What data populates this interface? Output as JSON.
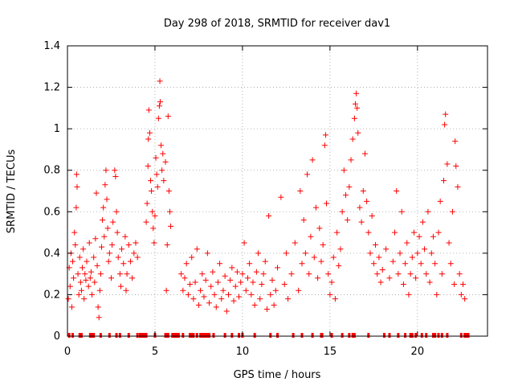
{
  "chart_data": {
    "type": "scatter",
    "title": "Day 298 of 2018, SRMTID for receiver dav1",
    "xlabel": "GPS time / hours",
    "ylabel": "SRMTID / TECUs",
    "xlim": [
      0,
      24
    ],
    "ylim": [
      0,
      1.4
    ],
    "x_ticks": [
      0,
      5,
      10,
      15,
      20
    ],
    "x_tick_labels": [
      "0",
      "5",
      "10",
      "15",
      "20"
    ],
    "y_ticks": [
      0,
      0.2,
      0.4,
      0.6,
      0.8,
      1.0,
      1.2,
      1.4
    ],
    "y_tick_labels": [
      "0",
      "0.2",
      "0.4",
      "0.6",
      "0.8",
      "1",
      "1.2",
      "1.4"
    ],
    "grid": true,
    "marker": "+",
    "series_color": "#ff0000",
    "series": [
      {
        "name": "SRMTID",
        "points": [
          [
            0.05,
            0.18
          ],
          [
            0.1,
            0.33
          ],
          [
            0.15,
            0.24
          ],
          [
            0.2,
            0.4
          ],
          [
            0.25,
            0.14
          ],
          [
            0.3,
            0.36
          ],
          [
            0.35,
            0.28
          ],
          [
            0.4,
            0.5
          ],
          [
            0.45,
            0.44
          ],
          [
            0.5,
            0.62
          ],
          [
            0.52,
            0.78
          ],
          [
            0.55,
            0.72
          ],
          [
            0.6,
            0.3
          ],
          [
            0.65,
            0.2
          ],
          [
            0.7,
            0.38
          ],
          [
            0.75,
            0.26
          ],
          [
            0.8,
            0.22
          ],
          [
            0.85,
            0.33
          ],
          [
            0.9,
            0.42
          ],
          [
            0.95,
            0.18
          ],
          [
            1.0,
            0.3
          ],
          [
            1.05,
            0.27
          ],
          [
            1.1,
            0.36
          ],
          [
            1.2,
            0.24
          ],
          [
            1.25,
            0.45
          ],
          [
            1.3,
            0.28
          ],
          [
            1.35,
            0.31
          ],
          [
            1.4,
            0.2
          ],
          [
            1.5,
            0.38
          ],
          [
            1.55,
            0.26
          ],
          [
            1.6,
            0.47
          ],
          [
            1.65,
            0.69
          ],
          [
            1.7,
            0.34
          ],
          [
            1.75,
            0.14
          ],
          [
            1.8,
            0.09
          ],
          [
            1.85,
            0.22
          ],
          [
            1.9,
            0.3
          ],
          [
            1.95,
            0.43
          ],
          [
            2.0,
            0.56
          ],
          [
            2.05,
            0.62
          ],
          [
            2.1,
            0.48
          ],
          [
            2.15,
            0.73
          ],
          [
            2.2,
            0.8
          ],
          [
            2.25,
            0.66
          ],
          [
            2.3,
            0.52
          ],
          [
            2.35,
            0.36
          ],
          [
            2.4,
            0.4
          ],
          [
            2.5,
            0.28
          ],
          [
            2.55,
            0.44
          ],
          [
            2.6,
            0.55
          ],
          [
            2.7,
            0.8
          ],
          [
            2.75,
            0.77
          ],
          [
            2.8,
            0.6
          ],
          [
            2.85,
            0.5
          ],
          [
            2.9,
            0.38
          ],
          [
            3.0,
            0.3
          ],
          [
            3.05,
            0.24
          ],
          [
            3.1,
            0.42
          ],
          [
            3.2,
            0.35
          ],
          [
            3.3,
            0.48
          ],
          [
            3.35,
            0.22
          ],
          [
            3.4,
            0.3
          ],
          [
            3.5,
            0.44
          ],
          [
            3.6,
            0.36
          ],
          [
            3.7,
            0.28
          ],
          [
            3.8,
            0.4
          ],
          [
            3.9,
            0.45
          ],
          [
            4.0,
            0.38
          ],
          [
            4.5,
            0.55
          ],
          [
            4.55,
            0.64
          ],
          [
            4.6,
            0.82
          ],
          [
            4.62,
            0.95
          ],
          [
            4.65,
            1.09
          ],
          [
            4.7,
            0.98
          ],
          [
            4.75,
            0.75
          ],
          [
            4.8,
            0.7
          ],
          [
            4.85,
            0.6
          ],
          [
            4.9,
            0.52
          ],
          [
            4.95,
            0.45
          ],
          [
            5.0,
            0.58
          ],
          [
            5.05,
            0.86
          ],
          [
            5.1,
            0.78
          ],
          [
            5.15,
            0.72
          ],
          [
            5.2,
            1.05
          ],
          [
            5.25,
            1.11
          ],
          [
            5.28,
            1.23
          ],
          [
            5.3,
            1.13
          ],
          [
            5.35,
            0.92
          ],
          [
            5.4,
            0.8
          ],
          [
            5.45,
            0.88
          ],
          [
            5.5,
            0.75
          ],
          [
            5.6,
            0.84
          ],
          [
            5.65,
            0.22
          ],
          [
            5.7,
            0.44
          ],
          [
            5.75,
            1.06
          ],
          [
            5.8,
            0.7
          ],
          [
            5.85,
            0.6
          ],
          [
            5.9,
            0.53
          ],
          [
            6.5,
            0.3
          ],
          [
            6.6,
            0.22
          ],
          [
            6.7,
            0.28
          ],
          [
            6.8,
            0.35
          ],
          [
            6.9,
            0.2
          ],
          [
            7.0,
            0.25
          ],
          [
            7.1,
            0.38
          ],
          [
            7.2,
            0.18
          ],
          [
            7.3,
            0.26
          ],
          [
            7.4,
            0.42
          ],
          [
            7.5,
            0.15
          ],
          [
            7.6,
            0.22
          ],
          [
            7.7,
            0.3
          ],
          [
            7.8,
            0.19
          ],
          [
            7.9,
            0.27
          ],
          [
            8.0,
            0.4
          ],
          [
            8.1,
            0.16
          ],
          [
            8.2,
            0.24
          ],
          [
            8.3,
            0.31
          ],
          [
            8.4,
            0.2
          ],
          [
            8.5,
            0.14
          ],
          [
            8.6,
            0.26
          ],
          [
            8.7,
            0.35
          ],
          [
            8.8,
            0.18
          ],
          [
            8.9,
            0.22
          ],
          [
            9.0,
            0.29
          ],
          [
            9.1,
            0.12
          ],
          [
            9.2,
            0.2
          ],
          [
            9.3,
            0.27
          ],
          [
            9.4,
            0.33
          ],
          [
            9.5,
            0.17
          ],
          [
            9.6,
            0.24
          ],
          [
            9.7,
            0.31
          ],
          [
            9.8,
            0.19
          ],
          [
            9.9,
            0.26
          ],
          [
            10.0,
            0.3
          ],
          [
            10.1,
            0.45
          ],
          [
            10.2,
            0.22
          ],
          [
            10.3,
            0.28
          ],
          [
            10.4,
            0.35
          ],
          [
            10.5,
            0.2
          ],
          [
            10.6,
            0.26
          ],
          [
            10.7,
            0.15
          ],
          [
            10.8,
            0.31
          ],
          [
            10.9,
            0.4
          ],
          [
            11.0,
            0.18
          ],
          [
            11.1,
            0.25
          ],
          [
            11.2,
            0.3
          ],
          [
            11.3,
            0.36
          ],
          [
            11.4,
            0.13
          ],
          [
            11.5,
            0.58
          ],
          [
            11.6,
            0.2
          ],
          [
            11.7,
            0.27
          ],
          [
            11.8,
            0.15
          ],
          [
            11.9,
            0.22
          ],
          [
            12.0,
            0.33
          ],
          [
            12.2,
            0.67
          ],
          [
            12.4,
            0.25
          ],
          [
            12.5,
            0.4
          ],
          [
            12.6,
            0.18
          ],
          [
            12.8,
            0.3
          ],
          [
            13.0,
            0.45
          ],
          [
            13.2,
            0.22
          ],
          [
            13.3,
            0.7
          ],
          [
            13.4,
            0.35
          ],
          [
            13.5,
            0.56
          ],
          [
            13.6,
            0.4
          ],
          [
            13.7,
            0.78
          ],
          [
            13.8,
            0.3
          ],
          [
            13.9,
            0.48
          ],
          [
            14.0,
            0.85
          ],
          [
            14.1,
            0.38
          ],
          [
            14.2,
            0.62
          ],
          [
            14.3,
            0.28
          ],
          [
            14.4,
            0.52
          ],
          [
            14.5,
            0.36
          ],
          [
            14.6,
            0.44
          ],
          [
            14.7,
            0.92
          ],
          [
            14.75,
            0.97
          ],
          [
            14.8,
            0.64
          ],
          [
            14.9,
            0.3
          ],
          [
            15.0,
            0.2
          ],
          [
            15.1,
            0.26
          ],
          [
            15.2,
            0.38
          ],
          [
            15.3,
            0.18
          ],
          [
            15.4,
            0.5
          ],
          [
            15.5,
            0.34
          ],
          [
            15.6,
            0.42
          ],
          [
            15.7,
            0.6
          ],
          [
            15.8,
            0.8
          ],
          [
            15.9,
            0.68
          ],
          [
            16.0,
            0.56
          ],
          [
            16.1,
            0.72
          ],
          [
            16.2,
            0.85
          ],
          [
            16.3,
            0.95
          ],
          [
            16.4,
            1.05
          ],
          [
            16.45,
            1.12
          ],
          [
            16.5,
            1.17
          ],
          [
            16.55,
            1.1
          ],
          [
            16.6,
            0.98
          ],
          [
            16.7,
            0.62
          ],
          [
            16.8,
            0.55
          ],
          [
            16.9,
            0.7
          ],
          [
            17.0,
            0.88
          ],
          [
            17.1,
            0.65
          ],
          [
            17.2,
            0.5
          ],
          [
            17.3,
            0.4
          ],
          [
            17.4,
            0.58
          ],
          [
            17.5,
            0.35
          ],
          [
            17.6,
            0.44
          ],
          [
            17.7,
            0.3
          ],
          [
            17.8,
            0.38
          ],
          [
            17.9,
            0.26
          ],
          [
            18.0,
            0.32
          ],
          [
            18.2,
            0.42
          ],
          [
            18.4,
            0.28
          ],
          [
            18.6,
            0.36
          ],
          [
            18.7,
            0.5
          ],
          [
            18.8,
            0.7
          ],
          [
            18.9,
            0.3
          ],
          [
            19.0,
            0.4
          ],
          [
            19.1,
            0.6
          ],
          [
            19.2,
            0.25
          ],
          [
            19.3,
            0.35
          ],
          [
            19.4,
            0.45
          ],
          [
            19.5,
            0.2
          ],
          [
            19.6,
            0.3
          ],
          [
            19.7,
            0.38
          ],
          [
            19.8,
            0.5
          ],
          [
            19.9,
            0.28
          ],
          [
            20.0,
            0.4
          ],
          [
            20.1,
            0.48
          ],
          [
            20.2,
            0.35
          ],
          [
            20.3,
            0.55
          ],
          [
            20.4,
            0.42
          ],
          [
            20.5,
            0.3
          ],
          [
            20.6,
            0.6
          ],
          [
            20.7,
            0.26
          ],
          [
            20.8,
            0.4
          ],
          [
            20.9,
            0.48
          ],
          [
            21.0,
            0.35
          ],
          [
            21.1,
            0.2
          ],
          [
            21.2,
            0.5
          ],
          [
            21.3,
            0.65
          ],
          [
            21.4,
            0.3
          ],
          [
            21.5,
            0.75
          ],
          [
            21.55,
            1.02
          ],
          [
            21.6,
            1.07
          ],
          [
            21.7,
            0.83
          ],
          [
            21.8,
            0.45
          ],
          [
            21.9,
            0.35
          ],
          [
            22.0,
            0.6
          ],
          [
            22.1,
            0.25
          ],
          [
            22.15,
            0.94
          ],
          [
            22.2,
            0.82
          ],
          [
            22.3,
            0.72
          ],
          [
            22.4,
            0.3
          ],
          [
            22.5,
            0.2
          ],
          [
            22.6,
            0.25
          ],
          [
            22.7,
            0.18
          ]
        ]
      }
    ],
    "rug_hours": [
      0.1,
      0.3,
      0.7,
      0.8,
      1.3,
      1.4,
      1.5,
      1.9,
      2.4,
      2.8,
      3.0,
      3.5,
      4.0,
      4.15,
      4.25,
      4.3,
      4.4,
      4.5,
      5.0,
      5.6,
      5.7,
      5.75,
      6.0,
      6.05,
      6.1,
      6.2,
      6.25,
      6.35,
      6.6,
      7.0,
      7.1,
      7.2,
      7.4,
      7.6,
      7.7,
      7.8,
      7.9,
      8.0,
      8.1,
      8.35,
      9.0,
      9.4,
      9.8,
      10.0,
      10.7,
      11.6,
      12.0,
      12.9,
      13.4,
      14.0,
      14.5,
      14.55,
      15.1,
      15.7,
      16.1,
      16.3,
      16.4,
      17.2,
      18.1,
      18.4,
      18.9,
      19.3,
      19.6,
      19.7,
      19.9,
      20.25,
      20.5,
      20.9,
      21.0,
      21.2,
      21.4,
      21.7,
      22.5,
      22.7,
      22.8,
      22.9
    ]
  }
}
